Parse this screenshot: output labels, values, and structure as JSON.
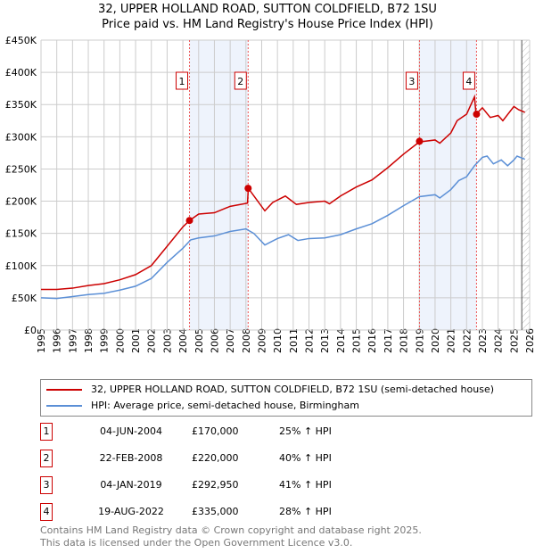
{
  "chart_data": {
    "type": "line",
    "title": "32, UPPER HOLLAND ROAD, SUTTON COLDFIELD, B72 1SU",
    "subtitle": "Price paid vs. HM Land Registry's House Price Index (HPI)",
    "ylim": [
      0,
      450000
    ],
    "xlim": [
      1995,
      2026
    ],
    "yticks": [
      {
        "v": 0,
        "l": "£0"
      },
      {
        "v": 50000,
        "l": "£50K"
      },
      {
        "v": 100000,
        "l": "£100K"
      },
      {
        "v": 150000,
        "l": "£150K"
      },
      {
        "v": 200000,
        "l": "£200K"
      },
      {
        "v": 250000,
        "l": "£250K"
      },
      {
        "v": 300000,
        "l": "£300K"
      },
      {
        "v": 350000,
        "l": "£350K"
      },
      {
        "v": 400000,
        "l": "£400K"
      },
      {
        "v": 450000,
        "l": "£450K"
      }
    ],
    "xticks": [
      "1995",
      "1996",
      "1997",
      "1998",
      "1999",
      "2000",
      "2001",
      "2002",
      "2003",
      "2004",
      "2005",
      "2006",
      "2007",
      "2008",
      "2009",
      "2010",
      "2011",
      "2012",
      "2013",
      "2014",
      "2015",
      "2016",
      "2017",
      "2018",
      "2019",
      "2020",
      "2021",
      "2022",
      "2023",
      "2024",
      "2025",
      "2026"
    ],
    "grid": true,
    "series": [
      {
        "name": "32, UPPER HOLLAND ROAD, SUTTON COLDFIELD, B72 1SU (semi-detached house)",
        "color": "#cc0000",
        "x": [
          1995,
          1996,
          1997,
          1998,
          1999,
          2000,
          2001,
          2002,
          2003,
          2004,
          2004.42,
          2005,
          2006,
          2007,
          2008.1,
          2008.15,
          2008.6,
          2009.2,
          2009.7,
          2010.5,
          2011.2,
          2012,
          2013,
          2013.3,
          2014,
          2015,
          2016,
          2017,
          2018,
          2019,
          2020,
          2020.3,
          2021,
          2021.4,
          2022,
          2022.5,
          2022.6,
          2023,
          2023.5,
          2024,
          2024.3,
          2025,
          2025.3,
          2025.7
        ],
        "y": [
          63000,
          63000,
          65000,
          69000,
          72000,
          78000,
          86000,
          100000,
          130000,
          160000,
          170000,
          180000,
          182000,
          192000,
          197000,
          220000,
          205000,
          185000,
          198000,
          208000,
          195000,
          198000,
          200000,
          196000,
          208000,
          222000,
          233000,
          252000,
          273000,
          292000,
          295000,
          290000,
          306000,
          325000,
          335000,
          362000,
          335000,
          345000,
          330000,
          333000,
          325000,
          347000,
          342000,
          338000
        ]
      },
      {
        "name": "HPI: Average price, semi-detached house, Birmingham",
        "color": "#5b8fd6",
        "x": [
          1995,
          1996,
          1997,
          1998,
          1999,
          2000,
          2001,
          2002,
          2003,
          2004,
          2004.5,
          2005,
          2006,
          2007,
          2008,
          2008.5,
          2009.2,
          2010,
          2010.7,
          2011.3,
          2012,
          2013,
          2014,
          2015,
          2016,
          2017,
          2018,
          2019,
          2020,
          2020.3,
          2021,
          2021.5,
          2022,
          2022.5,
          2023,
          2023.3,
          2023.7,
          2024.2,
          2024.6,
          2025,
          2025.2,
          2025.7
        ],
        "y": [
          50000,
          49000,
          52000,
          55000,
          57000,
          62000,
          68000,
          80000,
          105000,
          127000,
          140000,
          143000,
          146000,
          153000,
          157000,
          150000,
          132000,
          142000,
          148000,
          139000,
          142000,
          143000,
          148000,
          157000,
          165000,
          178000,
          193000,
          207000,
          210000,
          205000,
          218000,
          232000,
          238000,
          255000,
          268000,
          270000,
          258000,
          264000,
          255000,
          264000,
          270000,
          265000
        ]
      }
    ],
    "sales": [
      {
        "n": "1",
        "x": 2004.42,
        "y": 170000,
        "date": "04-JUN-2004",
        "price": "£170,000",
        "hpi": "25% ↑ HPI"
      },
      {
        "n": "2",
        "x": 2008.14,
        "y": 220000,
        "date": "22-FEB-2008",
        "price": "£220,000",
        "hpi": "40% ↑ HPI"
      },
      {
        "n": "3",
        "x": 2019.01,
        "y": 292950,
        "date": "04-JAN-2019",
        "price": "£292,950",
        "hpi": "41% ↑ HPI"
      },
      {
        "n": "4",
        "x": 2022.63,
        "y": 335000,
        "date": "19-AUG-2022",
        "price": "£335,000",
        "hpi": "28% ↑ HPI"
      }
    ],
    "shaded": [
      [
        2004.42,
        2008.14
      ],
      [
        2019.01,
        2022.63
      ]
    ],
    "hatched_from": 2025.5
  },
  "footer": {
    "line1": "Contains HM Land Registry data © Crown copyright and database right 2025.",
    "line2": "This data is licensed under the Open Government Licence v3.0."
  }
}
